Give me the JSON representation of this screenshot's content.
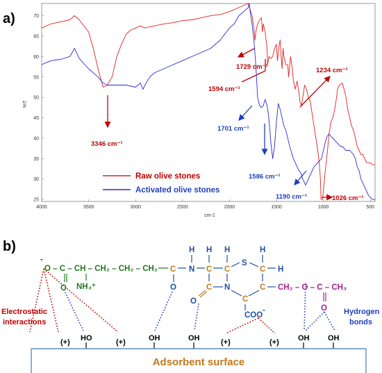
{
  "panel_a_label": "a)",
  "panel_b_label": "b)",
  "chart_data": {
    "type": "line",
    "xlabel": "cm-1",
    "ylabel": "%T",
    "xlim": [
      4000,
      450
    ],
    "ylim": [
      24.5,
      73
    ],
    "x_ticks": [
      4000,
      3500,
      3000,
      2500,
      2000,
      1500,
      1000,
      500
    ],
    "y_ticks": [
      25,
      30,
      35,
      40,
      45,
      50,
      55,
      60,
      65,
      70
    ],
    "series": [
      {
        "name": "Raw olive stones",
        "color": "#e02020",
        "x": [
          4000,
          3900,
          3800,
          3700,
          3650,
          3600,
          3500,
          3450,
          3400,
          3346,
          3300,
          3250,
          3200,
          3150,
          3100,
          3050,
          3000,
          2950,
          2900,
          2850,
          2800,
          2700,
          2600,
          2500,
          2400,
          2300,
          2200,
          2100,
          2000,
          1900,
          1850,
          1800,
          1780,
          1760,
          1740,
          1729,
          1720,
          1700,
          1680,
          1660,
          1650,
          1640,
          1620,
          1600,
          1594,
          1580,
          1560,
          1540,
          1520,
          1510,
          1500,
          1490,
          1470,
          1460,
          1450,
          1440,
          1430,
          1420,
          1400,
          1380,
          1370,
          1350,
          1330,
          1320,
          1300,
          1280,
          1260,
          1250,
          1234,
          1220,
          1200,
          1180,
          1160,
          1140,
          1120,
          1100,
          1080,
          1060,
          1050,
          1040,
          1030,
          1026,
          1010,
          1000,
          980,
          960,
          940,
          920,
          900,
          880,
          860,
          850,
          830,
          800,
          780,
          760,
          740,
          720,
          700,
          680,
          660,
          640,
          620,
          600,
          580,
          560,
          540,
          520,
          500,
          480,
          460,
          450
        ],
        "y": [
          67,
          68,
          68.5,
          69,
          70,
          69,
          66,
          62,
          57,
          52.5,
          53,
          55,
          60,
          63,
          65.5,
          66.5,
          67,
          67.5,
          67,
          67.3,
          67.5,
          68,
          68.3,
          68.8,
          69,
          69.5,
          70,
          70.3,
          71,
          72,
          72.5,
          73,
          71.5,
          70,
          67,
          64,
          66,
          68,
          69,
          69.5,
          66,
          68,
          66,
          62,
          58,
          60,
          59.5,
          60,
          62,
          62.5,
          63,
          59,
          63,
          64,
          60,
          57,
          62,
          60,
          58,
          58,
          55,
          60,
          57,
          54,
          52,
          54,
          51,
          49,
          48,
          50,
          53,
          52,
          50,
          49,
          46,
          43,
          40,
          37,
          35,
          33,
          29,
          25,
          25,
          27,
          32,
          36,
          41,
          44,
          45,
          47,
          50,
          52,
          53,
          53.5,
          52,
          50,
          47,
          45,
          43,
          42,
          40,
          38,
          37,
          36,
          36,
          35,
          34,
          34,
          34,
          33.5,
          33.5,
          33.5
        ]
      },
      {
        "name": "Activated olive stones",
        "color": "#2a2ad8",
        "x": [
          4000,
          3900,
          3800,
          3700,
          3650,
          3600,
          3500,
          3400,
          3346,
          3300,
          3200,
          3100,
          3000,
          2950,
          2920,
          2900,
          2850,
          2800,
          2700,
          2600,
          2500,
          2400,
          2300,
          2200,
          2100,
          2000,
          1950,
          1900,
          1850,
          1800,
          1790,
          1780,
          1760,
          1740,
          1720,
          1701,
          1690,
          1680,
          1660,
          1640,
          1620,
          1600,
          1586,
          1570,
          1560,
          1540,
          1520,
          1500,
          1480,
          1460,
          1440,
          1420,
          1400,
          1380,
          1360,
          1340,
          1320,
          1300,
          1280,
          1260,
          1240,
          1220,
          1200,
          1190,
          1180,
          1160,
          1140,
          1120,
          1100,
          1080,
          1060,
          1040,
          1020,
          1000,
          980,
          960,
          940,
          920,
          900,
          880,
          860,
          840,
          820,
          800,
          780,
          760,
          740,
          720,
          700,
          680,
          660,
          640,
          620,
          600,
          580,
          560,
          540,
          520,
          500,
          480,
          460,
          450
        ],
        "y": [
          58,
          59,
          59.3,
          60,
          62,
          59.5,
          57,
          55,
          53.5,
          53,
          53,
          53,
          52.5,
          53.5,
          52,
          53,
          55,
          56,
          57,
          58,
          59,
          60,
          61,
          62,
          64,
          67,
          68,
          70,
          71,
          72,
          73,
          71,
          68,
          64,
          58,
          50,
          49,
          48,
          47.5,
          48,
          49.5,
          48,
          46,
          42,
          39,
          35,
          38,
          44,
          48.5,
          47,
          45,
          43,
          42,
          40,
          38,
          36.5,
          35,
          34,
          33,
          32,
          31.5,
          30,
          29,
          28.5,
          29,
          30,
          31,
          32,
          33,
          33.5,
          34,
          34.5,
          35,
          37,
          39,
          40.5,
          41,
          40.5,
          40,
          39.5,
          39,
          38.5,
          38,
          38,
          37.5,
          37,
          37,
          37,
          36.5,
          36,
          35,
          33,
          32,
          30,
          29,
          28,
          27,
          26,
          25.5,
          25,
          25,
          25
        ]
      }
    ],
    "annotations": [
      {
        "text": "3346 cm⁻¹",
        "x": 3346,
        "color": "#c00000"
      },
      {
        "text": "1729 cm⁻¹",
        "x": 1729,
        "color": "#c00000"
      },
      {
        "text": "1594 cm⁻¹",
        "x": 1594,
        "color": "#c00000"
      },
      {
        "text": "1234 cm⁻¹",
        "x": 1234,
        "color": "#c00000"
      },
      {
        "text": "1026 cm⁻¹",
        "x": 1026,
        "color": "#c00000"
      },
      {
        "text": "1701 cm⁻¹",
        "x": 1701,
        "color": "#1f3fbf"
      },
      {
        "text": "1586 cm⁻¹",
        "x": 1586,
        "color": "#1f3fbf"
      },
      {
        "text": "1190 cm⁻¹",
        "x": 1190,
        "color": "#1f3fbf"
      }
    ]
  },
  "legend": {
    "raw": "Raw olive stones",
    "activated": "Activated olive stones",
    "raw_color": "#e02020",
    "activated_color": "#2a2ad8"
  },
  "diagram": {
    "surface_label": "Adsorbent surface",
    "electrostatic_label_1": "Electrostatic",
    "electrostatic_label_2": "interactions",
    "hydrogen_label_1": "Hydrogen",
    "hydrogen_label_2": "bonds",
    "chain": "O – C – CH – CH₂ – CH₂ – CH₂",
    "minus": "-",
    "chain_O": "O",
    "nh3": "NH₃⁺",
    "amide_C": "C",
    "amide_O": "O",
    "N1": "N",
    "H1": "H",
    "H2": "H",
    "H3": "H",
    "H4": "H",
    "ring_C1": "C",
    "ring_C2": "C",
    "ring_S": "S",
    "ring_C3": "C",
    "ring_C4": "C",
    "ring_N2": "N",
    "ring_C5": "C",
    "ring_C6": "C",
    "beta_O": "O",
    "side_chain": "CH₂ – O – C – CH₃",
    "ester_O": "O",
    "coo": "COO",
    "coo_minus": "-",
    "surface_groups": [
      "(+)",
      "HO",
      "(+)",
      "OH",
      "OH",
      "(+)",
      "(+)",
      "OH",
      "OH"
    ]
  }
}
